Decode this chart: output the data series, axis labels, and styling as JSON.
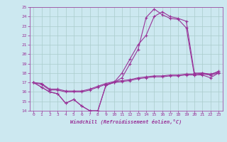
{
  "title": "",
  "xlabel": "Windchill (Refroidissement éolien,°C)",
  "ylabel": "",
  "background_color": "#cce8f0",
  "line_color": "#993399",
  "grid_color": "#aacccc",
  "xlim": [
    -0.5,
    23.5
  ],
  "ylim": [
    14,
    25
  ],
  "xticks": [
    0,
    1,
    2,
    3,
    4,
    5,
    6,
    7,
    8,
    9,
    10,
    11,
    12,
    13,
    14,
    15,
    16,
    17,
    18,
    19,
    20,
    21,
    22,
    23
  ],
  "yticks": [
    14,
    15,
    16,
    17,
    18,
    19,
    20,
    21,
    22,
    23,
    24,
    25
  ],
  "line1_x": [
    0,
    1,
    2,
    3,
    4,
    5,
    6,
    7,
    8,
    9,
    10,
    11,
    12,
    13,
    14,
    15,
    16,
    17,
    18,
    19,
    20,
    21,
    22,
    23
  ],
  "line1_y": [
    17.0,
    16.5,
    16.0,
    15.8,
    14.8,
    15.2,
    14.5,
    14.0,
    14.0,
    16.7,
    17.0,
    18.0,
    19.5,
    21.0,
    22.0,
    24.0,
    24.5,
    24.0,
    23.8,
    23.5,
    18.0,
    18.0,
    17.8,
    18.2
  ],
  "line2_x": [
    0,
    1,
    2,
    3,
    4,
    5,
    6,
    7,
    8,
    9,
    10,
    11,
    12,
    13,
    14,
    15,
    16,
    17,
    18,
    19,
    20,
    21,
    22,
    23
  ],
  "line2_y": [
    17.0,
    16.5,
    16.0,
    15.8,
    14.8,
    15.2,
    14.5,
    14.0,
    14.0,
    16.7,
    17.0,
    17.5,
    19.0,
    20.5,
    23.9,
    24.8,
    24.2,
    23.8,
    23.7,
    22.8,
    17.8,
    17.8,
    17.5,
    18.0
  ],
  "line3_x": [
    0,
    1,
    2,
    3,
    4,
    5,
    6,
    7,
    8,
    9,
    10,
    11,
    12,
    13,
    14,
    15,
    16,
    17,
    18,
    19,
    20,
    21,
    22,
    23
  ],
  "line3_y": [
    17.0,
    16.8,
    16.2,
    16.2,
    16.0,
    16.0,
    16.0,
    16.2,
    16.5,
    16.8,
    17.0,
    17.1,
    17.2,
    17.4,
    17.5,
    17.6,
    17.6,
    17.7,
    17.7,
    17.8,
    17.8,
    17.9,
    17.8,
    18.0
  ],
  "line4_x": [
    0,
    1,
    2,
    3,
    4,
    5,
    6,
    7,
    8,
    9,
    10,
    11,
    12,
    13,
    14,
    15,
    16,
    17,
    18,
    19,
    20,
    21,
    22,
    23
  ],
  "line4_y": [
    17.0,
    16.9,
    16.3,
    16.3,
    16.1,
    16.1,
    16.1,
    16.3,
    16.6,
    16.9,
    17.1,
    17.2,
    17.3,
    17.5,
    17.6,
    17.7,
    17.7,
    17.8,
    17.8,
    17.9,
    17.9,
    18.0,
    17.9,
    18.1
  ]
}
